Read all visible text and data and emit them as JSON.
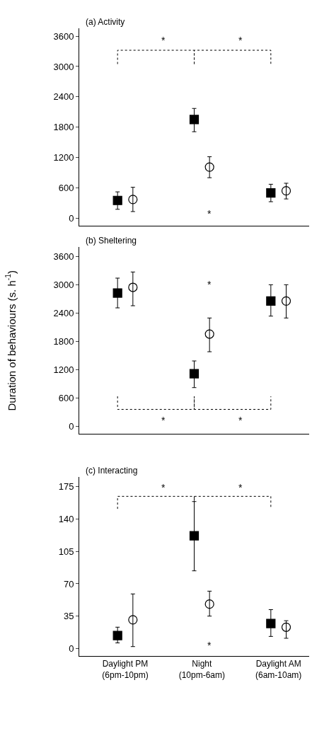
{
  "chart_data": [
    {
      "type": "scatter",
      "title": "(a) Activity",
      "categories": [
        "Daylight PM\n(6pm-10pm)",
        "Night\n(10pm-6am)",
        "Daylight AM\n(6am-10am)"
      ],
      "series": [
        {
          "color": "#000000",
          "marker": "square",
          "values": [
            350,
            1950,
            500
          ],
          "errors": [
            [
              175,
              520
            ],
            [
              1710,
              2170
            ],
            [
              325,
              670
            ]
          ]
        },
        {
          "color": "#000000",
          "marker": "circle",
          "values": [
            370,
            1010,
            540
          ],
          "errors": [
            [
              130,
              610
            ],
            [
              800,
              1215
            ],
            [
              380,
              690
            ]
          ]
        }
      ],
      "ylim": [
        -150,
        3750
      ],
      "yticks": [
        0,
        600,
        1200,
        1800,
        2400,
        3000,
        3600
      ],
      "tick_labels": "y",
      "annotations": [
        "*",
        "*",
        "*"
      ]
    },
    {
      "type": "scatter",
      "title": "(b) Sheltering",
      "ylabel": "Duration of behaviours (s. h$^{-1}$)",
      "categories": [
        "Daylight PM\n(6pm-10pm)",
        "Night\n(10pm-6am)",
        "Daylight AM\n(6am-10am)"
      ],
      "series": [
        {
          "color": "#000000",
          "marker": "square",
          "values": [
            2830,
            1120,
            2660
          ],
          "errors": [
            [
              2515,
              3145
            ],
            [
              825,
              1390
            ],
            [
              2340,
              3005
            ]
          ]
        },
        {
          "color": "#000000",
          "marker": "circle",
          "values": [
            2950,
            1960,
            2660
          ],
          "errors": [
            [
              2560,
              3275
            ],
            [
              1585,
              2300
            ],
            [
              2300,
              3005
            ]
          ]
        }
      ],
      "ylim": [
        -150,
        3800
      ],
      "yticks": [
        0,
        600,
        1200,
        1800,
        2400,
        3000,
        3600
      ],
      "tick_labels": "y",
      "annotations": [
        "*",
        "*",
        "*"
      ]
    },
    {
      "type": "scatter",
      "title": "(c) Interacting",
      "categories": [
        "Daylight PM\n(6pm-10pm)",
        "Night\n(10pm-6am)",
        "Daylight AM\n(6am-10am)"
      ],
      "series": [
        {
          "color": "#000000",
          "marker": "square",
          "values": [
            14,
            122,
            27
          ],
          "errors": [
            [
              6,
              23
            ],
            [
              84,
              159
            ],
            [
              13,
              42
            ]
          ]
        },
        {
          "color": "#000000",
          "marker": "circle",
          "values": [
            31,
            48,
            23
          ],
          "errors": [
            [
              2,
              59
            ],
            [
              35,
              62
            ],
            [
              11,
              30
            ]
          ]
        }
      ],
      "ylim": [
        -8,
        186
      ],
      "yticks": [
        0,
        35,
        70,
        105,
        140,
        175
      ],
      "annotations": [
        "*",
        "*",
        "*"
      ]
    }
  ]
}
